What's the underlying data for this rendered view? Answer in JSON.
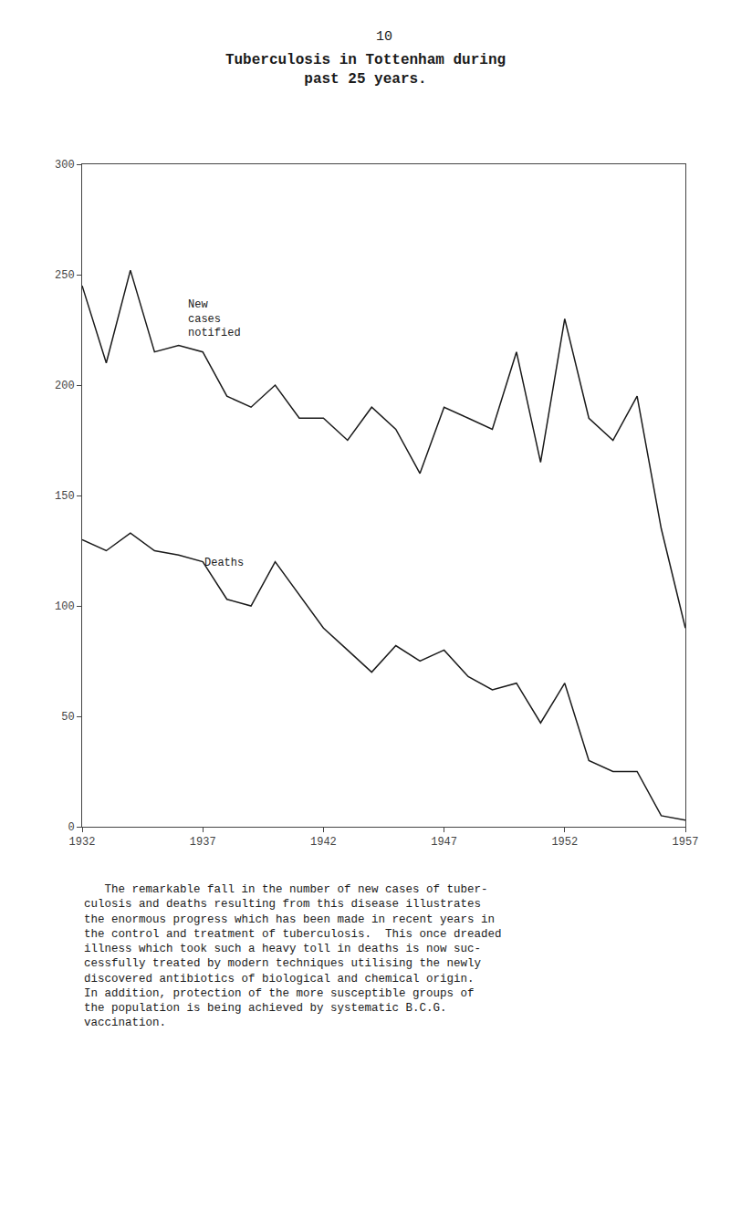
{
  "chart_data": {
    "type": "line",
    "title": "Tuberculosis in Tottenham during\npast 25 years.",
    "page_number": "10",
    "body_text": "   The remarkable fall in the number of new cases of tuber-\nculosis and deaths resulting from this disease illustrates\nthe enormous progress which has been made in recent years in\nthe control and treatment of tuberculosis.  This once dreaded\nillness which took such a heavy toll in deaths is now suc-\ncessfully treated by modern techniques utilising the newly\ndiscovered antibiotics of biological and chemical origin.\nIn addition, protection of the more susceptible groups of\nthe population is being achieved by systematic B.C.G.\nvaccination.",
    "x": [
      1932,
      1933,
      1934,
      1935,
      1936,
      1937,
      1938,
      1939,
      1940,
      1941,
      1942,
      1943,
      1944,
      1945,
      1946,
      1947,
      1948,
      1949,
      1950,
      1951,
      1952,
      1953,
      1954,
      1955,
      1956,
      1957
    ],
    "series": [
      {
        "color": "#1a1a1a",
        "values": [
          245,
          210,
          252,
          215,
          218,
          215,
          195,
          190,
          200,
          185,
          185,
          175,
          190,
          180,
          160,
          190,
          185,
          180,
          215,
          165,
          230,
          185,
          175,
          195,
          135,
          90
        ]
      },
      {
        "color": "#1a1a1a",
        "values": [
          130,
          125,
          133,
          125,
          123,
          120,
          103,
          100,
          120,
          105,
          90,
          80,
          70,
          82,
          75,
          80,
          68,
          62,
          65,
          47,
          65,
          30,
          25,
          25,
          5,
          3
        ]
      }
    ],
    "annotations": [
      {
        "text": "New\ncases\nnotified",
        "x": 1936.3,
        "y": 240
      },
      {
        "text": "Deaths",
        "x": 1937.0,
        "y": 123
      }
    ],
    "xlim": [
      1932,
      1957
    ],
    "xticks": [
      1932,
      1937,
      1942,
      1947,
      1952,
      1957
    ],
    "ylim": [
      0,
      300
    ],
    "yticks": [
      0,
      50,
      100,
      150,
      200,
      250,
      300
    ],
    "grid": false
  }
}
